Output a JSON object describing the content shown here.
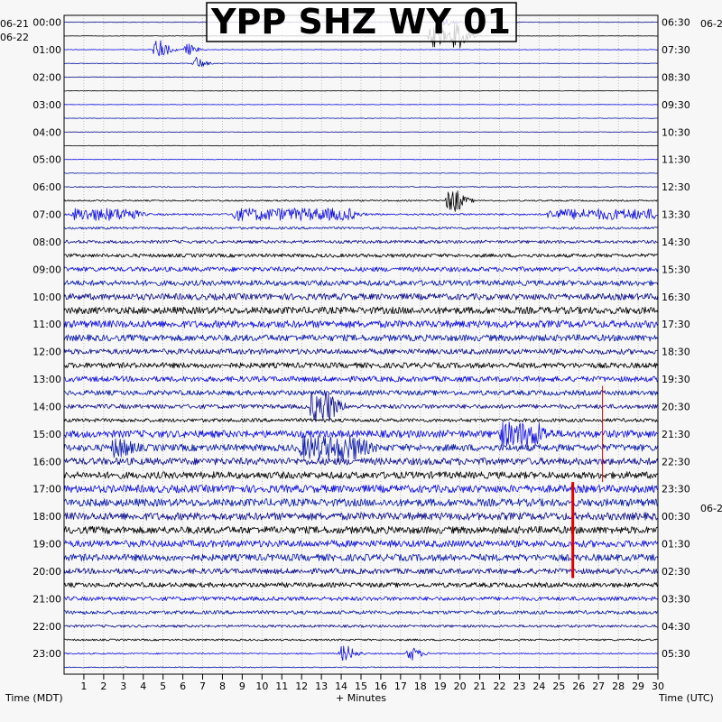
{
  "chart_data": {
    "type": "helicorder",
    "title": "YPP SHZ WY 01",
    "xlabel": "+ Minutes",
    "left_axis_label": "Time (MDT)",
    "right_axis_label": "Time (UTC)",
    "x_ticks": [
      "1",
      "2",
      "3",
      "4",
      "5",
      "6",
      "7",
      "8",
      "9",
      "10",
      "11",
      "12",
      "13",
      "14",
      "15",
      "16",
      "17",
      "18",
      "19",
      "20",
      "21",
      "22",
      "23",
      "24",
      "25",
      "26",
      "27",
      "28",
      "29",
      "30"
    ],
    "xlim": [
      0,
      30
    ],
    "date_labels_left": [
      "06-21",
      "06-22"
    ],
    "date_labels_right": [
      "06-2",
      "06-2"
    ],
    "left_hours": [
      "00:00",
      "01:00",
      "02:00",
      "03:00",
      "04:00",
      "05:00",
      "06:00",
      "07:00",
      "08:00",
      "09:00",
      "10:00",
      "11:00",
      "12:00",
      "13:00",
      "14:00",
      "15:00",
      "16:00",
      "17:00",
      "18:00",
      "19:00",
      "20:00",
      "21:00",
      "22:00",
      "23:00"
    ],
    "right_hours": [
      "06:30",
      "07:30",
      "08:30",
      "09:30",
      "10:30",
      "11:30",
      "12:30",
      "13:30",
      "14:30",
      "15:30",
      "16:30",
      "17:30",
      "18:30",
      "19:30",
      "20:30",
      "21:30",
      "22:30",
      "23:30",
      "00:30",
      "01:30",
      "02:30",
      "03:30",
      "04:30",
      "05:30"
    ],
    "trace_colors": [
      "#0f0f8c",
      "#000000",
      "#1010e0",
      "#0a1aa8"
    ],
    "num_traces": 48,
    "minutes_per_trace": 30,
    "trace_amplitude": [
      0.3,
      0.25,
      0.3,
      0.3,
      0.3,
      0.3,
      0.3,
      0.3,
      0.3,
      0.3,
      0.3,
      0.3,
      0.5,
      0.8,
      1.0,
      1.3,
      1.7,
      2.0,
      2.6,
      3.0,
      3.5,
      3.9,
      4.0,
      3.6,
      3.0,
      3.0,
      3.0,
      2.8,
      2.4,
      2.0,
      4.0,
      3.8,
      3.9,
      3.8,
      4.2,
      4.2,
      4.2,
      4.0,
      3.8,
      3.8,
      3.0,
      2.6,
      2.2,
      2.0,
      1.4,
      1.0,
      0.7,
      0.5
    ],
    "events": [
      {
        "trace": 0,
        "minute": 19.2,
        "amp": 4,
        "dur": 0.2
      },
      {
        "trace": 1,
        "minute": 18.5,
        "amp": 12,
        "dur": 0.5
      },
      {
        "trace": 1,
        "minute": 19.6,
        "amp": 14,
        "dur": 0.4
      },
      {
        "trace": 2,
        "minute": 4.6,
        "amp": 10,
        "dur": 0.4
      },
      {
        "trace": 2,
        "minute": 6.1,
        "amp": 6,
        "dur": 0.3
      },
      {
        "trace": 3,
        "minute": 6.6,
        "amp": 7,
        "dur": 0.2
      },
      {
        "trace": 13,
        "minute": 19.4,
        "amp": 12,
        "dur": 0.5
      },
      {
        "trace": 14,
        "minute": 0.5,
        "amp": 6,
        "dur": 3.0
      },
      {
        "trace": 14,
        "minute": 8.5,
        "amp": 6,
        "dur": 6.0
      },
      {
        "trace": 14,
        "minute": 24.5,
        "amp": 5,
        "dur": 5.5
      },
      {
        "trace": 28,
        "minute": 12.5,
        "amp": 15,
        "dur": 1.0
      },
      {
        "trace": 30,
        "minute": 22.0,
        "amp": 10,
        "dur": 2.0
      },
      {
        "trace": 31,
        "minute": 12.0,
        "amp": 10,
        "dur": 3.0
      },
      {
        "trace": 31,
        "minute": 2.5,
        "amp": 8,
        "dur": 0.6
      },
      {
        "trace": 46,
        "minute": 14.0,
        "amp": 8,
        "dur": 0.4
      },
      {
        "trace": 46,
        "minute": 17.4,
        "amp": 7,
        "dur": 0.3
      }
    ],
    "picks": [
      {
        "minute": 25.7,
        "from_trace": 34,
        "to_trace": 40,
        "color": "#e00000",
        "width": 3
      },
      {
        "minute": 27.2,
        "from_trace": 27,
        "to_trace": 33,
        "color": "#e00000",
        "width": 1
      }
    ]
  }
}
